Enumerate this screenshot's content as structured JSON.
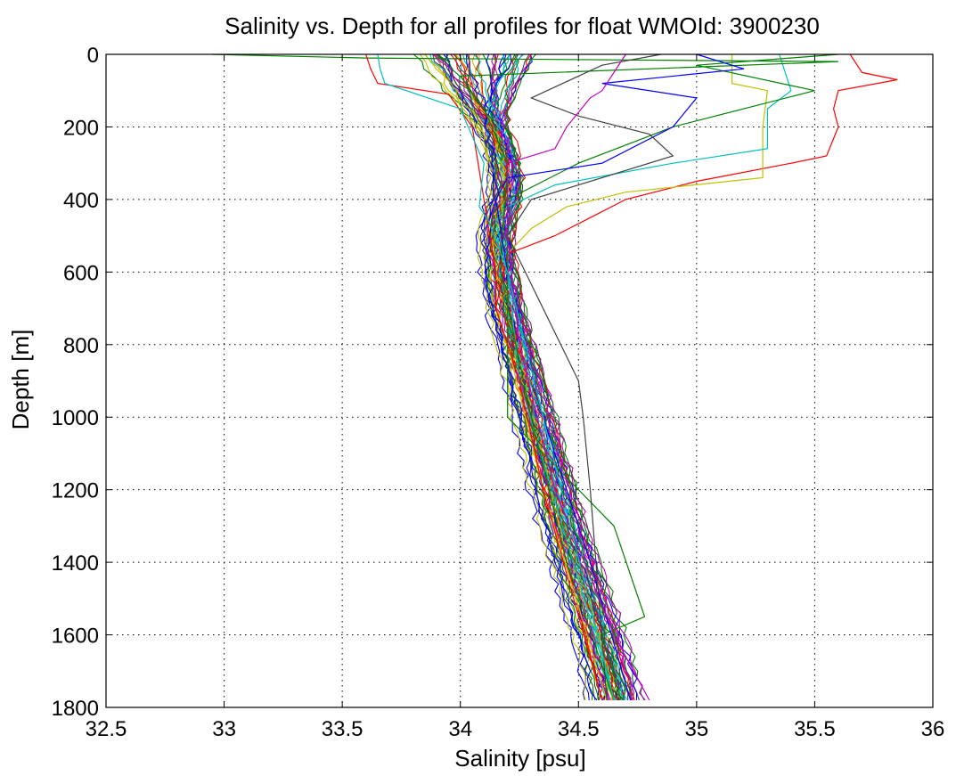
{
  "chart_data": {
    "type": "line",
    "title": "Salinity vs. Depth for all profiles for float WMOId: 3900230",
    "xlabel": "Salinity [psu]",
    "ylabel": "Depth [m]",
    "xlim": [
      32.5,
      36
    ],
    "ylim": [
      0,
      1800
    ],
    "y_inverted": true,
    "grid": true,
    "x_ticks": [
      "32.5",
      "33",
      "33.5",
      "34",
      "34.5",
      "35",
      "35.5",
      "36"
    ],
    "y_ticks": [
      "0",
      "200",
      "400",
      "600",
      "800",
      "1000",
      "1200",
      "1400",
      "1600",
      "1800"
    ],
    "colors": [
      "#ff0000",
      "#008000",
      "#0000ff",
      "#00bfbf",
      "#bf00bf",
      "#bfbf00",
      "#404040"
    ],
    "base_profile": {
      "depth": [
        0,
        50,
        100,
        150,
        200,
        250,
        300,
        350,
        400,
        450,
        500,
        600,
        700,
        800,
        900,
        1000,
        1100,
        1200,
        1300,
        1400,
        1500,
        1600,
        1700,
        1780
      ],
      "salinity": [
        34.07,
        34.08,
        34.09,
        34.11,
        34.14,
        34.17,
        34.19,
        34.2,
        34.19,
        34.17,
        34.16,
        34.17,
        34.2,
        34.24,
        34.28,
        34.32,
        34.36,
        34.4,
        34.44,
        34.49,
        34.54,
        34.59,
        34.63,
        34.66
      ]
    },
    "series": [
      {
        "color": "#ff0000",
        "depth": [
          0,
          50,
          70,
          100,
          150,
          200,
          280,
          300,
          350,
          400,
          450,
          500,
          550,
          700,
          1000,
          1400,
          1780
        ],
        "salinity": [
          35.65,
          35.7,
          35.85,
          35.6,
          35.58,
          35.6,
          35.55,
          35.4,
          35.0,
          34.7,
          34.55,
          34.4,
          34.2,
          34.15,
          34.3,
          34.45,
          34.6
        ]
      },
      {
        "color": "#bfbf00",
        "depth": [
          0,
          80,
          100,
          200,
          340,
          380,
          420,
          480,
          550,
          800,
          1200,
          1780
        ],
        "salinity": [
          35.15,
          35.15,
          35.3,
          35.28,
          35.28,
          34.7,
          34.45,
          34.3,
          34.2,
          34.2,
          34.35,
          34.62
        ]
      },
      {
        "color": "#00bfbf",
        "depth": [
          0,
          100,
          150,
          260,
          300,
          360,
          420,
          460,
          600,
          900,
          1780
        ],
        "salinity": [
          35.35,
          35.4,
          35.3,
          35.3,
          34.9,
          34.4,
          34.2,
          34.15,
          34.2,
          34.25,
          34.65
        ]
      },
      {
        "color": "#008000",
        "depth": [
          0,
          30,
          100,
          200,
          300,
          400,
          500,
          800,
          1000,
          1300,
          1550,
          1600,
          1780
        ],
        "salinity": [
          35.6,
          35.0,
          35.5,
          34.9,
          34.5,
          34.2,
          34.2,
          34.2,
          34.2,
          34.65,
          34.78,
          34.6,
          34.68
        ]
      },
      {
        "color": "#008000",
        "depth": [
          0,
          10,
          20,
          60,
          150,
          300,
          600,
          1000,
          1400,
          1780
        ],
        "salinity": [
          32.95,
          33.6,
          35.6,
          34.0,
          34.1,
          34.2,
          34.17,
          34.3,
          34.45,
          34.65
        ]
      },
      {
        "color": "#0000ff",
        "depth": [
          0,
          40,
          80,
          120,
          200,
          300,
          340,
          400,
          600,
          1000,
          1400,
          1780
        ],
        "salinity": [
          35.0,
          35.2,
          34.6,
          35.0,
          34.9,
          34.6,
          34.2,
          34.15,
          34.2,
          34.35,
          34.55,
          34.72
        ]
      },
      {
        "color": "#404040",
        "depth": [
          0,
          30,
          120,
          170,
          220,
          280,
          400,
          500,
          700,
          900,
          1000,
          1200,
          1780
        ],
        "salinity": [
          34.85,
          34.6,
          34.3,
          34.5,
          34.8,
          34.9,
          34.3,
          34.2,
          34.35,
          34.5,
          34.52,
          34.55,
          34.62
        ]
      },
      {
        "color": "#bf00bf",
        "depth": [
          0,
          100,
          120,
          200,
          260,
          300,
          500,
          800,
          1200,
          1600,
          1780
        ],
        "salinity": [
          34.7,
          34.6,
          34.55,
          34.45,
          34.4,
          34.2,
          34.2,
          34.25,
          34.4,
          34.65,
          34.8
        ]
      },
      {
        "color": "#ff0000",
        "depth": [
          0,
          40,
          80,
          110,
          200,
          400,
          600,
          700,
          900,
          1200,
          1780
        ],
        "salinity": [
          33.6,
          33.62,
          33.65,
          33.95,
          34.05,
          34.1,
          34.15,
          34.15,
          34.25,
          34.35,
          34.6
        ]
      },
      {
        "color": "#00bfbf",
        "depth": [
          0,
          40,
          80,
          150,
          300,
          420,
          460,
          600,
          1000,
          1780
        ],
        "salinity": [
          33.65,
          33.66,
          33.68,
          34.0,
          34.1,
          34.08,
          34.12,
          34.2,
          34.35,
          34.65
        ]
      }
    ]
  }
}
